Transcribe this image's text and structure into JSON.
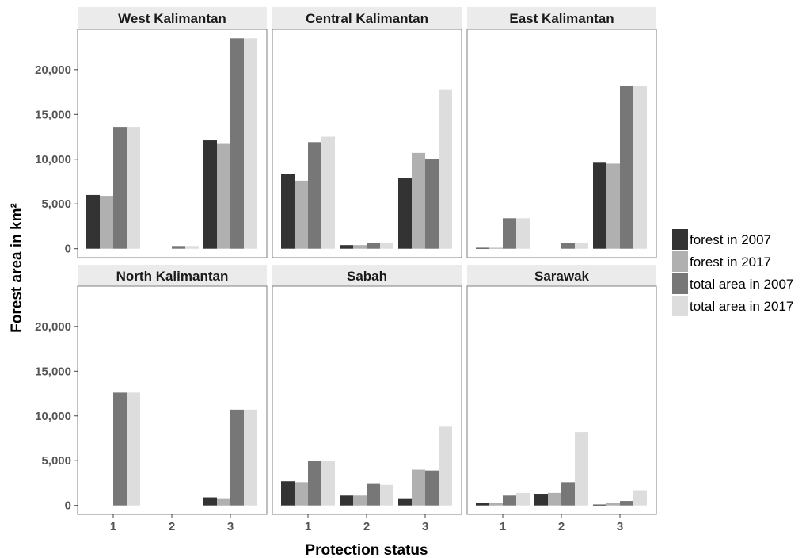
{
  "chart_data": {
    "type": "bar",
    "xlabel": "Protection status",
    "ylabel": "Forest area in km²",
    "categories": [
      "1",
      "2",
      "3"
    ],
    "ylim": [
      -1000,
      24500
    ],
    "yticks": [
      0,
      5000,
      10000,
      15000,
      20000
    ],
    "ytick_labels": [
      "0",
      "5,000",
      "10,000",
      "15,000",
      "20,000"
    ],
    "grid": false,
    "legend_position": "right",
    "series": [
      {
        "name": "forest in 2007",
        "color": "#333333"
      },
      {
        "name": "forest in 2017",
        "color": "#b0b0b0"
      },
      {
        "name": "total area in 2007",
        "color": "#777777"
      },
      {
        "name": "total area in 2017",
        "color": "#dddddd"
      }
    ],
    "panels": [
      {
        "title": "West Kalimantan",
        "values": [
          [
            6000,
            5900,
            13600,
            13600
          ],
          [
            0,
            0,
            300,
            300
          ],
          [
            12100,
            11700,
            23500,
            23500
          ]
        ]
      },
      {
        "title": "Central Kalimantan",
        "values": [
          [
            8300,
            7600,
            11900,
            12500
          ],
          [
            400,
            400,
            600,
            600
          ],
          [
            7900,
            10700,
            10000,
            17800
          ]
        ]
      },
      {
        "title": "East Kalimantan",
        "values": [
          [
            100,
            100,
            3400,
            3400
          ],
          [
            0,
            0,
            600,
            600
          ],
          [
            9600,
            9500,
            18200,
            18200
          ]
        ]
      },
      {
        "title": "North Kalimantan",
        "values": [
          [
            0,
            0,
            12600,
            12600
          ],
          [
            0,
            0,
            0,
            0
          ],
          [
            900,
            800,
            10700,
            10700
          ]
        ]
      },
      {
        "title": "Sabah",
        "values": [
          [
            2700,
            2600,
            5000,
            5000
          ],
          [
            1100,
            1100,
            2400,
            2300
          ],
          [
            800,
            4000,
            3900,
            8800
          ]
        ]
      },
      {
        "title": "Sarawak",
        "values": [
          [
            300,
            300,
            1100,
            1400
          ],
          [
            1300,
            1400,
            2600,
            8200
          ],
          [
            100,
            300,
            500,
            1700
          ]
        ]
      }
    ]
  }
}
